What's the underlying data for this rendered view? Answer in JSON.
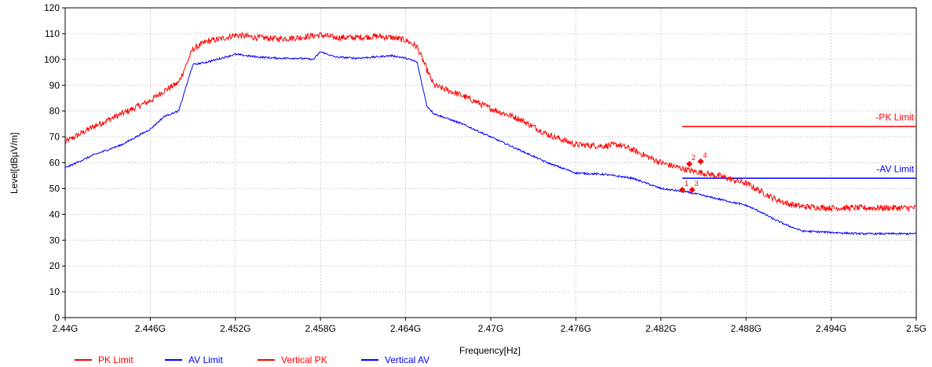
{
  "chart_data": {
    "type": "line",
    "xlabel": "Frequency[Hz]",
    "ylabel": "Level[dBµV/m]",
    "xlim": [
      2.44,
      2.5
    ],
    "ylim": [
      0,
      120
    ],
    "grid": true,
    "legend_position": "bottom-left",
    "x_ticks": [
      {
        "value": 2.44,
        "label": "2.44G"
      },
      {
        "value": 2.446,
        "label": "2.446G"
      },
      {
        "value": 2.452,
        "label": "2.452G"
      },
      {
        "value": 2.458,
        "label": "2.458G"
      },
      {
        "value": 2.464,
        "label": "2.464G"
      },
      {
        "value": 2.47,
        "label": "2.47G"
      },
      {
        "value": 2.476,
        "label": "2.476G"
      },
      {
        "value": 2.482,
        "label": "2.482G"
      },
      {
        "value": 2.488,
        "label": "2.488G"
      },
      {
        "value": 2.494,
        "label": "2.494G"
      },
      {
        "value": 2.5,
        "label": "2.5G"
      }
    ],
    "y_ticks": [
      {
        "value": 0,
        "label": "0"
      },
      {
        "value": 10,
        "label": "10"
      },
      {
        "value": 20,
        "label": "20"
      },
      {
        "value": 30,
        "label": "30"
      },
      {
        "value": 40,
        "label": "40"
      },
      {
        "value": 50,
        "label": "50"
      },
      {
        "value": 60,
        "label": "60"
      },
      {
        "value": 70,
        "label": "70"
      },
      {
        "value": 80,
        "label": "80"
      },
      {
        "value": 90,
        "label": "90"
      },
      {
        "value": 100,
        "label": "100"
      },
      {
        "value": 110,
        "label": "110"
      },
      {
        "value": 120,
        "label": "120"
      }
    ],
    "limits": [
      {
        "name": "PK Limit",
        "label": "-PK Limit",
        "color": "#ff0000",
        "x": [
          2.4835,
          2.5
        ],
        "y": 74
      },
      {
        "name": "AV Limit",
        "label": "-AV Limit",
        "color": "#0000ff",
        "x": [
          2.4835,
          2.5
        ],
        "y": 54
      }
    ],
    "series": [
      {
        "name": "Vertical PK",
        "color": "#ff0000",
        "x": [
          2.44,
          2.442,
          2.444,
          2.446,
          2.447,
          2.448,
          2.449,
          2.45,
          2.451,
          2.452,
          2.4535,
          2.455,
          2.4565,
          2.4572,
          2.458,
          2.459,
          2.4605,
          2.462,
          2.463,
          2.464,
          2.4648,
          2.4655,
          2.466,
          2.468,
          2.47,
          2.472,
          2.474,
          2.476,
          2.478,
          2.479,
          2.48,
          2.482,
          2.484,
          2.486,
          2.488,
          2.489,
          2.49,
          2.491,
          2.492,
          2.494,
          2.496,
          2.5
        ],
        "y": [
          68,
          74,
          79,
          84,
          88,
          91,
          104,
          107,
          108,
          109.5,
          108.5,
          108,
          108.5,
          109,
          109.5,
          108.5,
          108.5,
          109,
          108.5,
          107.5,
          105,
          96,
          90,
          86,
          81,
          77,
          71,
          67,
          66.5,
          67,
          65,
          60,
          57,
          55,
          52,
          49,
          46,
          44,
          43,
          42.5,
          42.5,
          42.5
        ]
      },
      {
        "name": "Vertical AV",
        "color": "#0000ff",
        "x": [
          2.44,
          2.442,
          2.444,
          2.446,
          2.447,
          2.448,
          2.449,
          2.45,
          2.451,
          2.452,
          2.4535,
          2.455,
          2.4565,
          2.4575,
          2.458,
          2.459,
          2.4605,
          2.462,
          2.463,
          2.464,
          2.4648,
          2.4655,
          2.466,
          2.468,
          2.47,
          2.472,
          2.474,
          2.476,
          2.478,
          2.48,
          2.482,
          2.484,
          2.486,
          2.488,
          2.489,
          2.49,
          2.491,
          2.492,
          2.494,
          2.496,
          2.5
        ],
        "y": [
          58,
          63,
          67,
          73,
          78,
          80,
          98,
          99,
          100.5,
          102,
          101,
          100.5,
          100.5,
          100,
          103,
          101,
          100.5,
          101,
          101.5,
          100.5,
          99,
          82,
          79,
          75,
          70,
          65,
          60,
          56,
          55.5,
          54,
          50,
          48.5,
          46,
          43.5,
          41,
          38,
          35.5,
          33.5,
          33,
          32.5,
          32.5
        ]
      }
    ],
    "markers": [
      {
        "label": "1",
        "x": 2.4835,
        "y": 49.5
      },
      {
        "label": "2",
        "x": 2.484,
        "y": 59.5
      },
      {
        "label": "3",
        "x": 2.4842,
        "y": 49.5
      },
      {
        "label": "4",
        "x": 2.4848,
        "y": 60.5
      }
    ],
    "legend": [
      {
        "label": "PK Limit",
        "color": "#ff0000"
      },
      {
        "label": "AV Limit",
        "color": "#0000ff"
      },
      {
        "label": "Vertical PK",
        "color": "#ff0000"
      },
      {
        "label": "Vertical AV",
        "color": "#0000ff"
      }
    ]
  }
}
